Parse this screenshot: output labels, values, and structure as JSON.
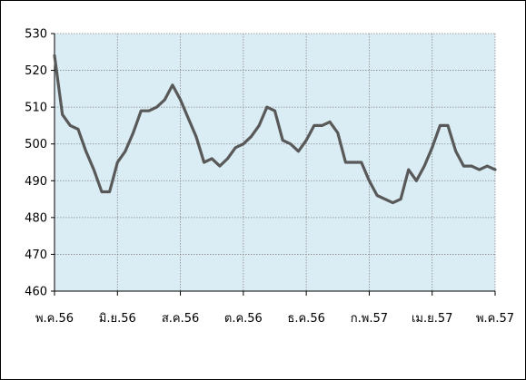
{
  "chart_data": {
    "type": "line",
    "title": "",
    "xlabel": "",
    "ylabel": "",
    "ylim": [
      460,
      530
    ],
    "yticks": [
      460,
      470,
      480,
      490,
      500,
      510,
      520,
      530
    ],
    "xtick_labels": [
      "พ.ค.56",
      "มิ.ย.56",
      "ส.ค.56",
      "ต.ค.56",
      "ธ.ค.56",
      "ก.พ.57",
      "เม.ย.57",
      "พ.ค.57"
    ],
    "grid": true,
    "plot_background": "#daedf4",
    "line_color": "#595959",
    "series": [
      {
        "values": [
          524,
          508,
          505,
          504,
          498,
          493,
          487,
          487,
          495,
          498,
          503,
          509,
          509,
          510,
          512,
          516,
          512,
          507,
          502,
          495,
          496,
          494,
          496,
          499,
          500,
          502,
          505,
          510,
          509,
          501,
          500,
          498,
          501,
          505,
          505,
          506,
          503,
          495,
          495,
          495,
          490,
          486,
          485,
          484,
          485,
          493,
          490,
          494,
          499,
          505,
          505,
          498,
          494,
          494,
          493,
          494,
          493
        ]
      }
    ]
  }
}
